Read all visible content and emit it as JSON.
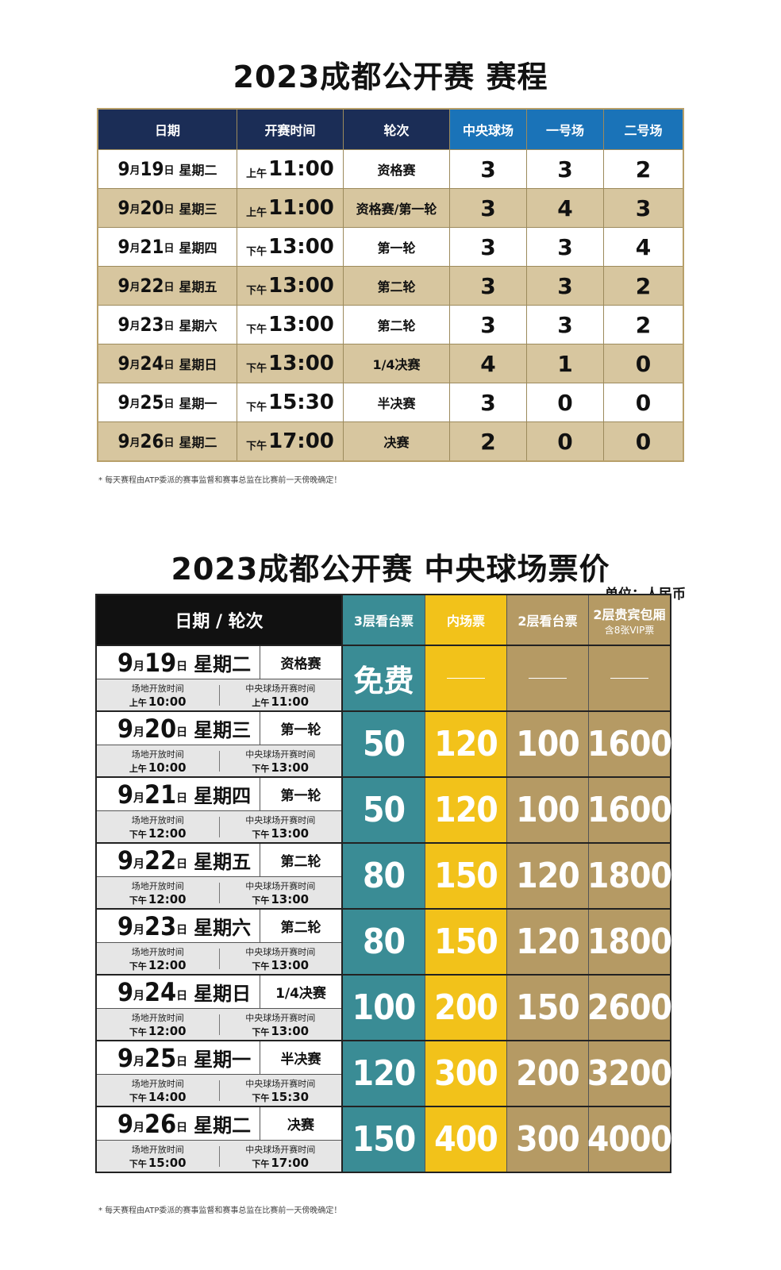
{
  "schedule": {
    "title": "2023成都公开赛 赛程",
    "headers": [
      "日期",
      "开赛时间",
      "轮次",
      "中央球场",
      "一号场",
      "二号场"
    ],
    "rows": [
      {
        "m": "9",
        "ml": "月",
        "d": "19",
        "dl": "日",
        "wk": "星期二",
        "ampm": "上午",
        "time": "11:00",
        "round": "资格赛",
        "c1": "3",
        "c2": "3",
        "c3": "2"
      },
      {
        "m": "9",
        "ml": "月",
        "d": "20",
        "dl": "日",
        "wk": "星期三",
        "ampm": "上午",
        "time": "11:00",
        "round": "资格赛/第一轮",
        "c1": "3",
        "c2": "4",
        "c3": "3"
      },
      {
        "m": "9",
        "ml": "月",
        "d": "21",
        "dl": "日",
        "wk": "星期四",
        "ampm": "下午",
        "time": "13:00",
        "round": "第一轮",
        "c1": "3",
        "c2": "3",
        "c3": "4"
      },
      {
        "m": "9",
        "ml": "月",
        "d": "22",
        "dl": "日",
        "wk": "星期五",
        "ampm": "下午",
        "time": "13:00",
        "round": "第二轮",
        "c1": "3",
        "c2": "3",
        "c3": "2"
      },
      {
        "m": "9",
        "ml": "月",
        "d": "23",
        "dl": "日",
        "wk": "星期六",
        "ampm": "下午",
        "time": "13:00",
        "round": "第二轮",
        "c1": "3",
        "c2": "3",
        "c3": "2"
      },
      {
        "m": "9",
        "ml": "月",
        "d": "24",
        "dl": "日",
        "wk": "星期日",
        "ampm": "下午",
        "time": "13:00",
        "round": "1/4决赛",
        "c1": "4",
        "c2": "1",
        "c3": "0"
      },
      {
        "m": "9",
        "ml": "月",
        "d": "25",
        "dl": "日",
        "wk": "星期一",
        "ampm": "下午",
        "time": "15:30",
        "round": "半决赛",
        "c1": "3",
        "c2": "0",
        "c3": "0"
      },
      {
        "m": "9",
        "ml": "月",
        "d": "26",
        "dl": "日",
        "wk": "星期二",
        "ampm": "下午",
        "time": "17:00",
        "round": "决赛",
        "c1": "2",
        "c2": "0",
        "c3": "0"
      }
    ],
    "note": "* 每天赛程由ATP委派的赛事监督和赛事总监在比赛前一天傍晚确定！"
  },
  "prices": {
    "title": "2023成都公开赛 中央球场票价",
    "unit": "单位：人民币",
    "header_left": "日期 / 轮次",
    "headers": [
      {
        "label": "3层看台票",
        "sub": ""
      },
      {
        "label": "内场票",
        "sub": ""
      },
      {
        "label": "2层看台票",
        "sub": ""
      },
      {
        "label": "2层贵宾包厢",
        "sub": "含8张VIP票"
      }
    ],
    "open_label": "场地开放时间",
    "start_label": "中央球场开赛时间",
    "rows": [
      {
        "m": "9",
        "ml": "月",
        "d": "19",
        "dl": "日",
        "wk": "星期二",
        "round": "资格赛",
        "open_ap": "上午",
        "open": "10:00",
        "start_ap": "上午",
        "start": "11:00",
        "p1": "免费",
        "p2": "",
        "p3": "",
        "p4": ""
      },
      {
        "m": "9",
        "ml": "月",
        "d": "20",
        "dl": "日",
        "wk": "星期三",
        "round": "第一轮",
        "open_ap": "上午",
        "open": "10:00",
        "start_ap": "下午",
        "start": "13:00",
        "p1": "50",
        "p2": "120",
        "p3": "100",
        "p4": "1600"
      },
      {
        "m": "9",
        "ml": "月",
        "d": "21",
        "dl": "日",
        "wk": "星期四",
        "round": "第一轮",
        "open_ap": "下午",
        "open": "12:00",
        "start_ap": "下午",
        "start": "13:00",
        "p1": "50",
        "p2": "120",
        "p3": "100",
        "p4": "1600"
      },
      {
        "m": "9",
        "ml": "月",
        "d": "22",
        "dl": "日",
        "wk": "星期五",
        "round": "第二轮",
        "open_ap": "下午",
        "open": "12:00",
        "start_ap": "下午",
        "start": "13:00",
        "p1": "80",
        "p2": "150",
        "p3": "120",
        "p4": "1800"
      },
      {
        "m": "9",
        "ml": "月",
        "d": "23",
        "dl": "日",
        "wk": "星期六",
        "round": "第二轮",
        "open_ap": "下午",
        "open": "12:00",
        "start_ap": "下午",
        "start": "13:00",
        "p1": "80",
        "p2": "150",
        "p3": "120",
        "p4": "1800"
      },
      {
        "m": "9",
        "ml": "月",
        "d": "24",
        "dl": "日",
        "wk": "星期日",
        "round": "1/4决赛",
        "open_ap": "下午",
        "open": "12:00",
        "start_ap": "下午",
        "start": "13:00",
        "p1": "100",
        "p2": "200",
        "p3": "150",
        "p4": "2600"
      },
      {
        "m": "9",
        "ml": "月",
        "d": "25",
        "dl": "日",
        "wk": "星期一",
        "round": "半决赛",
        "open_ap": "下午",
        "open": "14:00",
        "start_ap": "下午",
        "start": "15:30",
        "p1": "120",
        "p2": "300",
        "p3": "200",
        "p4": "3200"
      },
      {
        "m": "9",
        "ml": "月",
        "d": "26",
        "dl": "日",
        "wk": "星期二",
        "round": "决赛",
        "open_ap": "下午",
        "open": "15:00",
        "start_ap": "下午",
        "start": "17:00",
        "p1": "150",
        "p2": "400",
        "p3": "300",
        "p4": "4000"
      }
    ],
    "note": "* 每天赛程由ATP委派的赛事监督和赛事总监在比赛前一天傍晚确定！"
  },
  "colors": {
    "navy": "#1b2d56",
    "blue": "#1a73b8",
    "tan": "#d7c69f",
    "teal": "#3a8c95",
    "yellow": "#f2c21a",
    "gold": "#b59a64"
  }
}
